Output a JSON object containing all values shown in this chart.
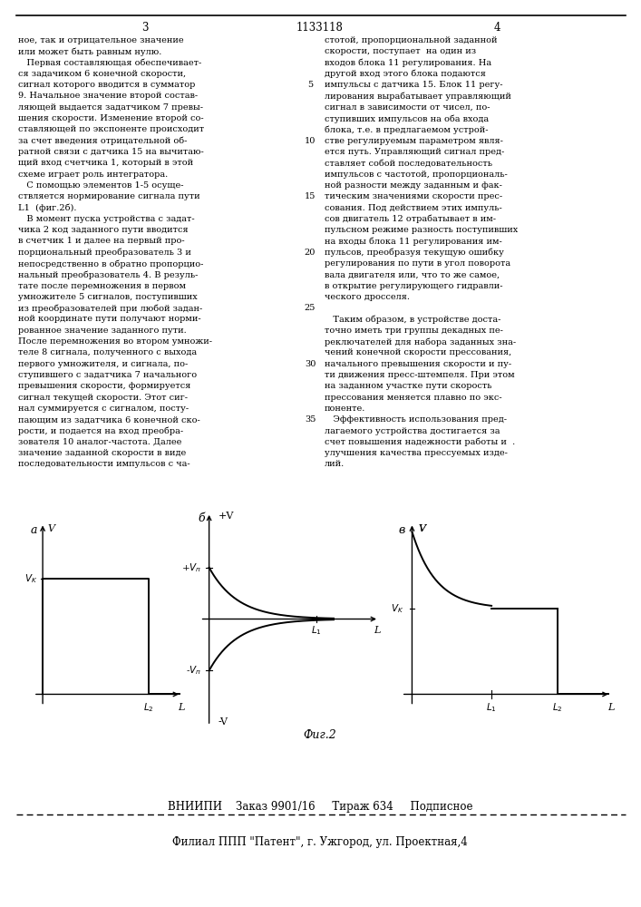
{
  "patent_number": "1133118",
  "page_left": "3",
  "page_right": "4",
  "left_column_text": [
    "ное, так и отрицательное значение",
    "или может быть равным нулю.",
    "   Первая составляющая обеспечивает-",
    "ся задачиком 6 конечной скорости,",
    "сигнал которого вводится в сумматор",
    "9. Начальное значение второй состав-",
    "ляющей выдается задатчиком 7 превы-",
    "шения скорости. Изменение второй со-",
    "ставляющей по экспоненте происходит",
    "за счет введения отрицательной об-",
    "ратной связи с датчика 15 на вычитаю-",
    "щий вход счетчика 1, который в этой",
    "схеме играет роль интегратора.",
    "   С помощью элементов 1-5 осуще-",
    "ствляется нормирование сигнала пути",
    "L1  (фиг.2б).",
    "   В момент пуска устройства с задат-",
    "чика 2 код заданного пути вводится",
    "в счетчик 1 и далее на первый про-",
    "порциональный преобразователь 3 и",
    "непосредственно в обратно пропорцио-",
    "нальный преобразователь 4. В резуль-",
    "тате после перемножения в первом",
    "умножителе 5 сигналов, поступивших",
    "из преобразователей при любой задан-",
    "ной координате пути получают норми-",
    "рованное значение заданного пути.",
    "После перемножения во втором умножи-",
    "теле 8 сигнала, полученного с выхода",
    "первого умножителя, и сигнала, по-",
    "ступившего с задатчика 7 начального",
    "превышения скорости, формируется",
    "сигнал текущей скорости. Этот сиг-",
    "нал суммируется с сигналом, посту-",
    "пающим из задатчика 6 конечной ско-",
    "рости, и подается на вход преобра-",
    "зователя 10 аналог-частота. Далее",
    "значение заданной скорости в виде",
    "последовательности импульсов с ча-"
  ],
  "right_column_text": [
    "стотой, пропорциональной заданной",
    "скорости, поступает  на один из",
    "входов блока 11 регулирования. На",
    "другой вход этого блока подаются",
    "импульсы с датчика 15. Блок 11 регу-",
    "лирования вырабатывает управляющий",
    "сигнал в зависимости от чисел, по-",
    "ступивших импульсов на оба входа",
    "блока, т.е. в предлагаемом устрой-",
    "стве регулируемым параметром явля-",
    "ется путь. Управляющий сигнал пред-",
    "ставляет собой последовательность",
    "импульсов с частотой, пропорциональ-",
    "ной разности между заданным и фак-",
    "тическим значениями скорости прес-",
    "сования. Под действием этих импуль-",
    "сов двигатель 12 отрабатывает в им-",
    "пульсном режиме разность поступивших",
    "на входы блока 11 регулирования им-",
    "пульсов, преобразуя текущую ошибку",
    "регулирования по пути в угол поворота",
    "вала двигателя или, что то же самое,",
    "в открытие регулирующего гидравли-",
    "ческого дросселя.",
    "",
    "   Таким образом, в устройстве доста-",
    "точно иметь три группы декадных пе-",
    "реключателей для набора заданных зна-",
    "чений конечной скорости прессования,",
    "начального превышения скорости и пу-",
    "ти движения пресс-штемпеля. При этом",
    "на заданном участке пути скорость",
    "прессования меняется плавно по экс-",
    "поненте.",
    "   Эффективность использования пред-",
    "лагаемого устройства достигается за",
    "счет повышения надежности работы и  .",
    "улучшения качества прессуемых изде-",
    "лий."
  ],
  "line_numbers": [
    "5",
    "10",
    "15",
    "20",
    "25",
    "30",
    "35"
  ],
  "line_number_rows": [
    4,
    9,
    14,
    19,
    24,
    29,
    34
  ],
  "fig_label": "Фиг.2",
  "footer_line1": "ВНИИПИ    Заказ 9901/16     Тираж 634     Подписное",
  "footer_line2": "Филиал ППП \"Патент\", г. Ужгород, ул. Проектная,4",
  "bg_color": "#ffffff",
  "text_color": "#000000"
}
